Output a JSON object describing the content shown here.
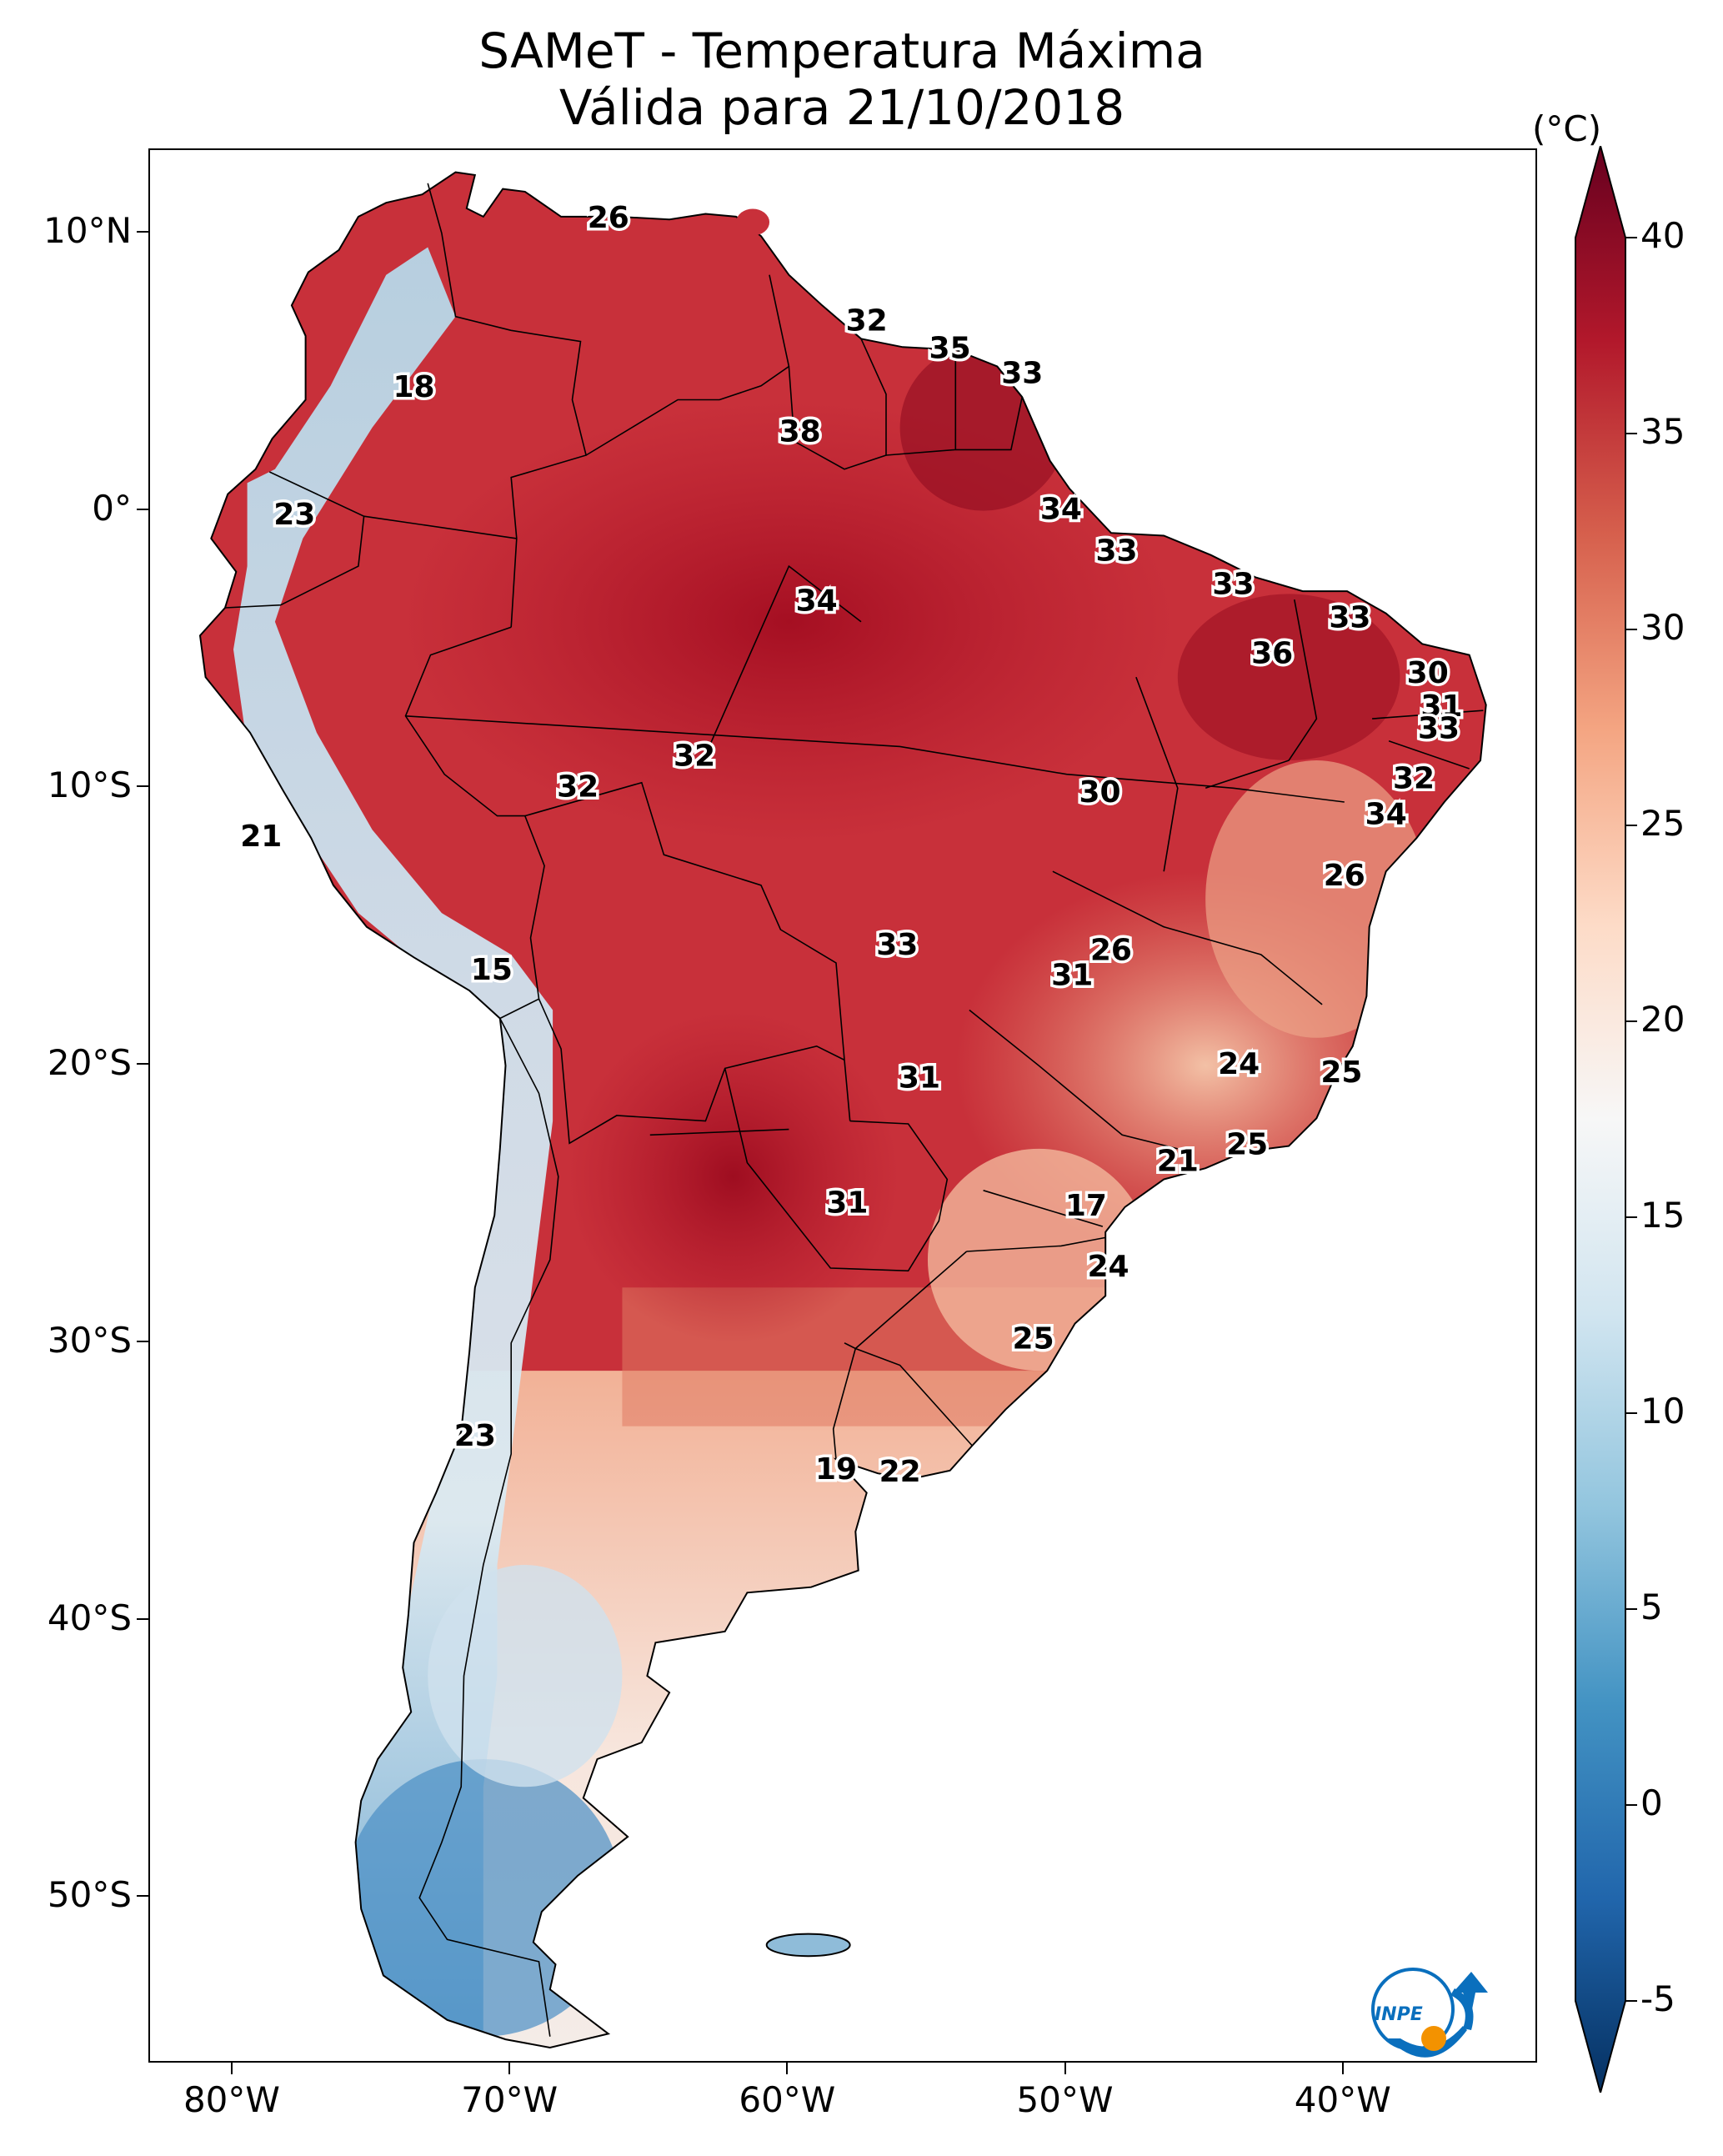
{
  "title": {
    "line1": "SAMeT - Temperatura Máxima",
    "line2": "Válida para 21/10/2018"
  },
  "x_axis": {
    "ticks": [
      {
        "lon": -80,
        "label": "80°W"
      },
      {
        "lon": -70,
        "label": "70°W"
      },
      {
        "lon": -60,
        "label": "60°W"
      },
      {
        "lon": -50,
        "label": "50°W"
      },
      {
        "lon": -40,
        "label": "40°W"
      }
    ]
  },
  "y_axis": {
    "ticks": [
      {
        "lat": 10,
        "label": "10°N"
      },
      {
        "lat": 0,
        "label": "0°"
      },
      {
        "lat": -10,
        "label": "10°S"
      },
      {
        "lat": -20,
        "label": "20°S"
      },
      {
        "lat": -30,
        "label": "30°S"
      },
      {
        "lat": -40,
        "label": "40°S"
      },
      {
        "lat": -50,
        "label": "50°S"
      }
    ]
  },
  "extent": {
    "lon_min": -83,
    "lon_max": -33,
    "lat_min": -56,
    "lat_max": 13
  },
  "colorbar": {
    "unit": "(°C)",
    "min": -5,
    "max": 40,
    "ticks": [
      {
        "value": 40,
        "label": "40"
      },
      {
        "value": 35,
        "label": "35"
      },
      {
        "value": 30,
        "label": "30"
      },
      {
        "value": 25,
        "label": "25"
      },
      {
        "value": 20,
        "label": "20"
      },
      {
        "value": 15,
        "label": "15"
      },
      {
        "value": 10,
        "label": "10"
      },
      {
        "value": 5,
        "label": "5"
      },
      {
        "value": 0,
        "label": "0"
      },
      {
        "value": -5,
        "label": "-5"
      }
    ],
    "colors": [
      "#053061",
      "#2166ac",
      "#4393c3",
      "#92c5de",
      "#d1e5f0",
      "#f7f7f7",
      "#fddbc7",
      "#f4a582",
      "#d6604d",
      "#b2182b",
      "#67001f"
    ]
  },
  "labels": [
    {
      "lon": -66.5,
      "lat": 10.5,
      "text": "26"
    },
    {
      "lon": -57.2,
      "lat": 6.8,
      "text": "32"
    },
    {
      "lon": -54.2,
      "lat": 5.8,
      "text": "35"
    },
    {
      "lon": -51.6,
      "lat": 4.9,
      "text": "33"
    },
    {
      "lon": -73.5,
      "lat": 4.4,
      "text": "18"
    },
    {
      "lon": -59.6,
      "lat": 2.8,
      "text": "38"
    },
    {
      "lon": -50.2,
      "lat": 0.0,
      "text": "34"
    },
    {
      "lon": -77.8,
      "lat": -0.2,
      "text": "23"
    },
    {
      "lon": -48.2,
      "lat": -1.5,
      "text": "33"
    },
    {
      "lon": -44.0,
      "lat": -2.7,
      "text": "33"
    },
    {
      "lon": -59.0,
      "lat": -3.3,
      "text": "34"
    },
    {
      "lon": -39.8,
      "lat": -3.9,
      "text": "33"
    },
    {
      "lon": -42.6,
      "lat": -5.2,
      "text": "36"
    },
    {
      "lon": -37.0,
      "lat": -5.9,
      "text": "30"
    },
    {
      "lon": -36.5,
      "lat": -7.1,
      "text": "31"
    },
    {
      "lon": -36.6,
      "lat": -7.9,
      "text": "33"
    },
    {
      "lon": -63.4,
      "lat": -8.9,
      "text": "32"
    },
    {
      "lon": -37.5,
      "lat": -9.7,
      "text": "32"
    },
    {
      "lon": -67.6,
      "lat": -10.0,
      "text": "32"
    },
    {
      "lon": -48.8,
      "lat": -10.2,
      "text": "30"
    },
    {
      "lon": -38.5,
      "lat": -11.0,
      "text": "34"
    },
    {
      "lon": -79.0,
      "lat": -11.8,
      "text": "21"
    },
    {
      "lon": -40.0,
      "lat": -13.2,
      "text": "26"
    },
    {
      "lon": -56.1,
      "lat": -15.7,
      "text": "33"
    },
    {
      "lon": -48.4,
      "lat": -15.9,
      "text": "26"
    },
    {
      "lon": -49.8,
      "lat": -16.8,
      "text": "31"
    },
    {
      "lon": -70.7,
      "lat": -16.6,
      "text": "15"
    },
    {
      "lon": -43.8,
      "lat": -20.0,
      "text": "24"
    },
    {
      "lon": -40.1,
      "lat": -20.3,
      "text": "25"
    },
    {
      "lon": -55.3,
      "lat": -20.5,
      "text": "31"
    },
    {
      "lon": -43.5,
      "lat": -22.9,
      "text": "25"
    },
    {
      "lon": -46.0,
      "lat": -23.5,
      "text": "21"
    },
    {
      "lon": -57.9,
      "lat": -25.0,
      "text": "31"
    },
    {
      "lon": -49.3,
      "lat": -25.1,
      "text": "17"
    },
    {
      "lon": -48.5,
      "lat": -27.3,
      "text": "24"
    },
    {
      "lon": -51.2,
      "lat": -29.9,
      "text": "25"
    },
    {
      "lon": -71.3,
      "lat": -33.4,
      "text": "23"
    },
    {
      "lon": -58.3,
      "lat": -34.6,
      "text": "19"
    },
    {
      "lon": -56.0,
      "lat": -34.7,
      "text": "22"
    }
  ],
  "logo_text": "INPE"
}
